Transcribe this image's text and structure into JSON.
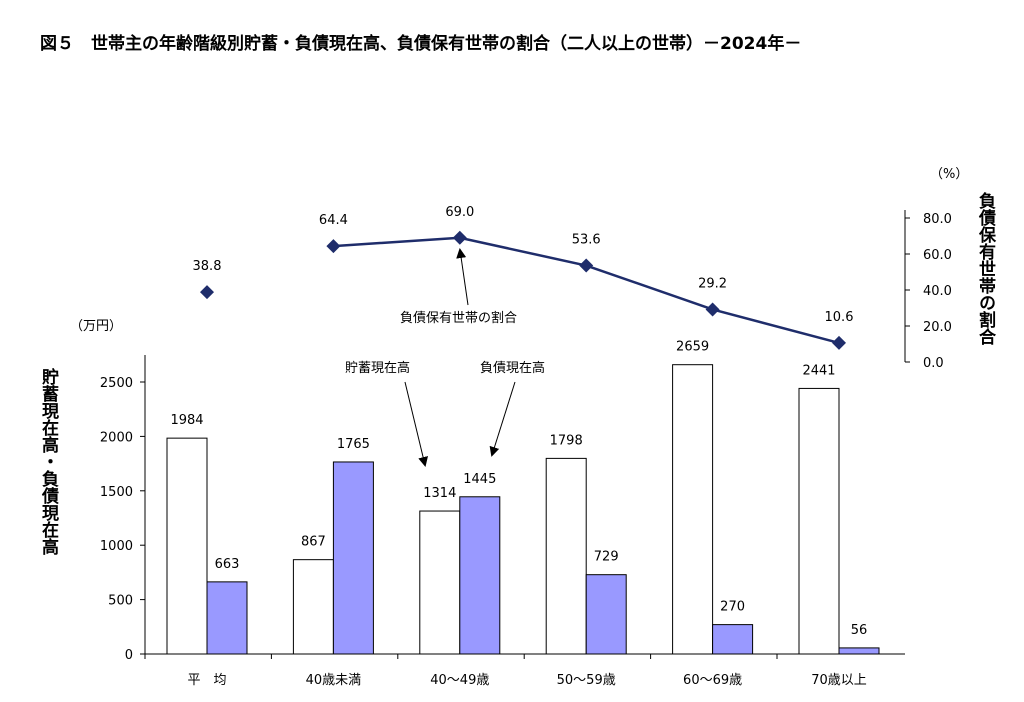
{
  "chart_data": {
    "type": "bar+line",
    "title": "図５　世帯主の年齢階級別貯蓄・負債現在高、負債保有世帯の割合（二人以上の世帯）－2024年－",
    "categories": [
      "平　均",
      "40歳未満",
      "40～49歳",
      "50～59歳",
      "60～69歳",
      "70歳以上"
    ],
    "series": [
      {
        "name": "貯蓄現在高",
        "type": "bar",
        "axis": "left",
        "color": "#ffffff",
        "values": [
          1984,
          867,
          1314,
          1798,
          2659,
          2441
        ]
      },
      {
        "name": "負債現在高",
        "type": "bar",
        "axis": "left",
        "color": "#9999ff",
        "values": [
          663,
          1765,
          1445,
          729,
          270,
          56
        ]
      },
      {
        "name": "負債保有世帯の割合",
        "type": "line",
        "axis": "right",
        "color": "#1f2d6b",
        "values": [
          38.8,
          64.4,
          69.0,
          53.6,
          29.2,
          10.6
        ],
        "value_labels": [
          "38.8",
          "64.4",
          "69.0",
          "53.6",
          "29.2",
          "10.6"
        ]
      }
    ],
    "ylabel": "貯蓄現在高・負債現在高",
    "yunit": "（万円）",
    "ylim": [
      0,
      2750
    ],
    "yticks": [
      "0",
      "500",
      "1000",
      "1500",
      "2000",
      "2500"
    ],
    "y2label": "負債保有世帯の割合",
    "y2unit": "（%）",
    "y2lim": [
      0,
      80
    ],
    "y2ticks": [
      "0.0",
      "20.0",
      "40.0",
      "60.0",
      "80.0"
    ],
    "annotations": [
      "貯蓄現在高",
      "負債現在高",
      "負債保有世帯の割合"
    ],
    "grid": false
  }
}
